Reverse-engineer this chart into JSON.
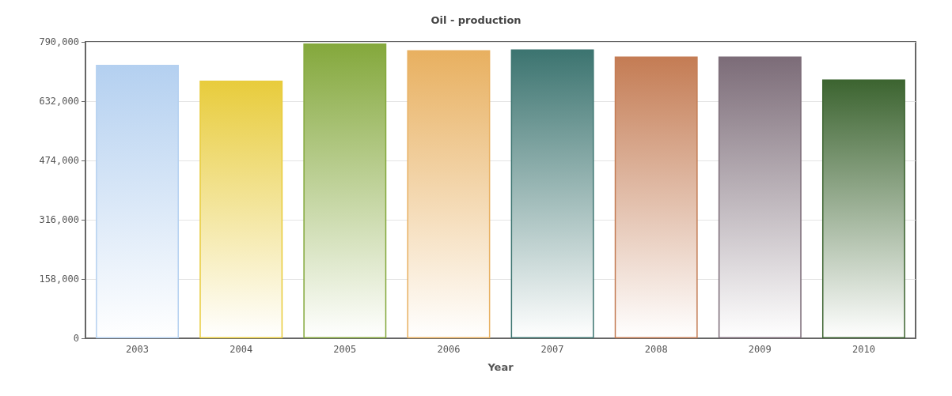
{
  "chart_data": {
    "type": "bar",
    "title": "Oil - production",
    "xlabel": "Year",
    "categories": [
      "2003",
      "2004",
      "2005",
      "2006",
      "2007",
      "2008",
      "2009",
      "2010"
    ],
    "values": [
      729000,
      687000,
      786000,
      768000,
      770000,
      751000,
      751000,
      690000
    ],
    "colors": [
      "#b4d0f0",
      "#e8cc3c",
      "#84a83c",
      "#e8b060",
      "#3c7470",
      "#c47c54",
      "#7c6c78",
      "#3c6430"
    ],
    "ylim": [
      0,
      790000
    ],
    "yticks": [
      0,
      {
        "value": 158000,
        "label": "158,000"
      },
      {
        "value": 316000,
        "label": "316,000"
      },
      {
        "value": 474000,
        "label": "474,000"
      },
      {
        "value": 632000,
        "label": "632,000"
      },
      {
        "value": 790000,
        "label": "790,000"
      }
    ],
    "grid": "y"
  }
}
